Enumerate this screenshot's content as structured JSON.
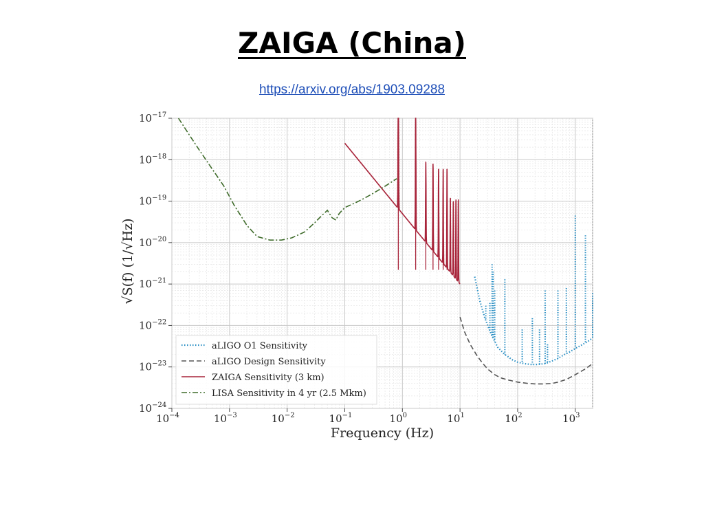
{
  "slide": {
    "title": "ZAIGA (China)",
    "link": "https://arxiv.org/abs/1903.09288"
  },
  "chart_data": {
    "type": "line",
    "title": "",
    "xlabel": "Frequency (Hz)",
    "ylabel": "√S(f)   (1/√Hz)",
    "xscale": "log",
    "yscale": "log",
    "xlim": [
      0.0001,
      2000
    ],
    "ylim": [
      1e-24,
      1e-17
    ],
    "x_ticks": [
      {
        "value": 0.0001,
        "base": "10",
        "exp": "−4"
      },
      {
        "value": 0.001,
        "base": "10",
        "exp": "−3"
      },
      {
        "value": 0.01,
        "base": "10",
        "exp": "−2"
      },
      {
        "value": 0.1,
        "base": "10",
        "exp": "−1"
      },
      {
        "value": 1,
        "base": "10",
        "exp": "0"
      },
      {
        "value": 10,
        "base": "10",
        "exp": "1"
      },
      {
        "value": 100,
        "base": "10",
        "exp": "2"
      },
      {
        "value": 1000,
        "base": "10",
        "exp": "3"
      }
    ],
    "y_ticks": [
      {
        "value": 1e-17,
        "base": "10",
        "exp": "−17"
      },
      {
        "value": 1e-18,
        "base": "10",
        "exp": "−18"
      },
      {
        "value": 1e-19,
        "base": "10",
        "exp": "−19"
      },
      {
        "value": 1e-20,
        "base": "10",
        "exp": "−20"
      },
      {
        "value": 1e-21,
        "base": "10",
        "exp": "−21"
      },
      {
        "value": 1e-22,
        "base": "10",
        "exp": "−22"
      },
      {
        "value": 1e-23,
        "base": "10",
        "exp": "−23"
      },
      {
        "value": 1e-24,
        "base": "10",
        "exp": "−24"
      }
    ],
    "grid": true,
    "legend_position": "lower-left",
    "series": [
      {
        "name": "aLIGO O1 Sensitivity",
        "color": "#2a8fc4",
        "style": "dotted",
        "x": [
          18,
          22,
          27,
          35,
          45,
          60,
          80,
          100,
          130,
          170,
          220,
          300,
          400,
          500,
          650,
          800,
          1000,
          1300,
          1600,
          2000
        ],
        "y": [
          1.5e-21,
          4e-22,
          1.5e-22,
          6e-23,
          3e-23,
          2e-23,
          1.5e-23,
          1.3e-23,
          1.2e-23,
          1.15e-23,
          1.15e-23,
          1.2e-23,
          1.4e-23,
          1.6e-23,
          2e-23,
          2.3e-23,
          2.8e-23,
          3.4e-23,
          4e-23,
          5e-23
        ],
        "lines": [
          {
            "x": 28,
            "y": 3e-22
          },
          {
            "x": 33,
            "y": 3.5e-22
          },
          {
            "x": 36,
            "y": 3e-21
          },
          {
            "x": 37.5,
            "y": 2e-21
          },
          {
            "x": 40,
            "y": 7e-22
          },
          {
            "x": 60,
            "y": 1.3e-21
          },
          {
            "x": 120,
            "y": 8e-23
          },
          {
            "x": 180,
            "y": 1.5e-22
          },
          {
            "x": 240,
            "y": 8e-23
          },
          {
            "x": 300,
            "y": 7e-22
          },
          {
            "x": 330,
            "y": 3.5e-23
          },
          {
            "x": 500,
            "y": 7e-22
          },
          {
            "x": 700,
            "y": 8e-22
          },
          {
            "x": 1000,
            "y": 4.5e-20
          },
          {
            "x": 1500,
            "y": 1.5e-20
          },
          {
            "x": 2000,
            "y": 6e-22
          }
        ]
      },
      {
        "name": "aLIGO Design Sensitivity",
        "color": "#555555",
        "style": "dashed",
        "x": [
          10,
          12,
          15,
          20,
          25,
          30,
          40,
          50,
          70,
          100,
          150,
          200,
          300,
          400,
          500,
          700,
          1000,
          1500,
          2000
        ],
        "y": [
          1.6e-22,
          7e-23,
          3.5e-23,
          1.8e-23,
          1.2e-23,
          9e-24,
          6.5e-24,
          5.5e-24,
          4.8e-24,
          4.3e-24,
          4e-24,
          3.9e-24,
          3.9e-24,
          4e-24,
          4.3e-24,
          5e-24,
          6.5e-24,
          9e-24,
          1.2e-23
        ]
      },
      {
        "name": "ZAIGA Sensitivity (3 km)",
        "color": "#a8243a",
        "style": "solid",
        "x": [
          0.1,
          10
        ],
        "y": [
          2.5e-18,
          1e-21
        ],
        "resonances": [
          0.85,
          1.7,
          2.55,
          3.4,
          4.25,
          5.1,
          5.95,
          6.8,
          7.65,
          8.5,
          9.35
        ],
        "resonance_peaks": [
          5e-17,
          2e-17,
          9e-19,
          8e-19,
          6e-19,
          6e-19,
          6e-19,
          1.2e-19,
          1e-19,
          1.1e-19,
          1.1e-19
        ]
      },
      {
        "name": "LISA Sensitivity in 4 yr (2.5 Mkm)",
        "color": "#3e6b2a",
        "style": "dashdot",
        "x": [
          0.00013,
          0.0002,
          0.0003,
          0.0005,
          0.0008,
          0.0012,
          0.002,
          0.003,
          0.005,
          0.008,
          0.012,
          0.02,
          0.03,
          0.04,
          0.05,
          0.06,
          0.07,
          0.08,
          0.1,
          0.15,
          0.2,
          0.3,
          0.5,
          0.8
        ],
        "y": [
          1e-17,
          4e-18,
          1.7e-18,
          6e-19,
          2.3e-19,
          8e-20,
          2.6e-20,
          1.4e-20,
          1.15e-20,
          1.15e-20,
          1.3e-20,
          1.8e-20,
          3e-20,
          4.5e-20,
          6e-20,
          4e-20,
          3.5e-20,
          5e-20,
          7e-20,
          9e-20,
          1.1e-19,
          1.5e-19,
          2.3e-19,
          3.5e-19
        ]
      }
    ]
  }
}
